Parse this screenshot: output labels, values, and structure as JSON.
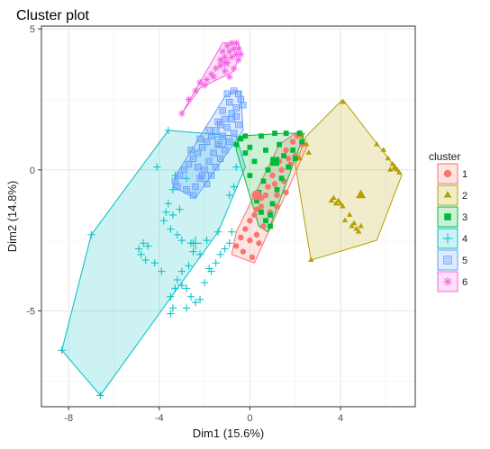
{
  "chart_data": {
    "type": "scatter",
    "title": "Cluster plot",
    "xlabel": "Dim1 (15.6%)",
    "ylabel": "Dim2 (14.8%)",
    "xlim": [
      -9.2,
      7.3
    ],
    "ylim": [
      -8.4,
      5.1
    ],
    "x_ticks": [
      -8,
      -4,
      0,
      4
    ],
    "x_tick_labels": [
      "-8",
      "-4",
      "0",
      "4"
    ],
    "y_ticks": [
      5,
      0,
      -5
    ],
    "y_tick_labels": [
      "5",
      "0",
      "-5"
    ],
    "grid": true,
    "legend": {
      "title": "cluster",
      "position": "right"
    },
    "series": [
      {
        "name": "1",
        "color": "#F8766D",
        "shape": "circle",
        "hull": [
          [
            -0.6,
            -2.2
          ],
          [
            1.3,
            0.9
          ],
          [
            2.2,
            1.4
          ],
          [
            2.5,
            0.8
          ],
          [
            1.9,
            -0.3
          ],
          [
            0.2,
            -3.3
          ],
          [
            -0.8,
            -3.0
          ]
        ],
        "points": [
          [
            -0.4,
            -2.4
          ],
          [
            -0.2,
            -2.1
          ],
          [
            0.0,
            -1.8
          ],
          [
            0.3,
            -1.4
          ],
          [
            0.5,
            -1.0
          ],
          [
            0.8,
            -0.6
          ],
          [
            1.0,
            -0.2
          ],
          [
            1.3,
            0.3
          ],
          [
            1.6,
            0.7
          ],
          [
            1.9,
            1.0
          ],
          [
            2.1,
            1.2
          ],
          [
            -0.6,
            -2.7
          ],
          [
            -0.3,
            -2.9
          ],
          [
            0.1,
            -3.1
          ],
          [
            0.4,
            -2.6
          ],
          [
            0.6,
            -2.0
          ],
          [
            0.9,
            -1.5
          ],
          [
            1.2,
            -0.9
          ],
          [
            1.5,
            -0.4
          ],
          [
            1.8,
            0.2
          ],
          [
            2.0,
            0.5
          ],
          [
            2.3,
            0.9
          ],
          [
            0.2,
            -1.6
          ],
          [
            0.5,
            -1.3
          ],
          [
            0.7,
            -0.9
          ],
          [
            1.1,
            -0.5
          ],
          [
            1.4,
            0.0
          ],
          [
            1.7,
            0.4
          ],
          [
            0.3,
            -2.3
          ],
          [
            0.0,
            -2.5
          ],
          [
            1.2,
            -1.3
          ],
          [
            1.6,
            -0.8
          ]
        ]
      },
      {
        "name": "2",
        "color": "#B79F00",
        "shape": "triangle",
        "hull": [
          [
            2.5,
            1.2
          ],
          [
            4.1,
            2.5
          ],
          [
            6.7,
            -0.2
          ],
          [
            5.6,
            -2.5
          ],
          [
            2.7,
            -3.2
          ],
          [
            2.0,
            0.2
          ]
        ],
        "points": [
          [
            4.1,
            2.4
          ],
          [
            5.6,
            0.9
          ],
          [
            5.9,
            0.7
          ],
          [
            6.1,
            0.4
          ],
          [
            6.3,
            0.2
          ],
          [
            6.4,
            0.05
          ],
          [
            6.5,
            0.0
          ],
          [
            6.6,
            -0.1
          ],
          [
            6.4,
            0.1
          ],
          [
            6.2,
            0.0
          ],
          [
            3.6,
            -1.1
          ],
          [
            3.8,
            -1.2
          ],
          [
            3.9,
            -1.1
          ],
          [
            4.0,
            -1.2
          ],
          [
            4.1,
            -1.3
          ],
          [
            3.7,
            -1.0
          ],
          [
            4.4,
            -1.6
          ],
          [
            4.2,
            -1.8
          ],
          [
            4.5,
            -2.0
          ],
          [
            4.7,
            -2.1
          ],
          [
            4.8,
            -2.2
          ],
          [
            4.9,
            -2.0
          ],
          [
            4.9,
            -0.9
          ],
          [
            2.7,
            -3.2
          ],
          [
            2.3,
            1.2
          ],
          [
            2.5,
            0.9
          ],
          [
            2.6,
            0.6
          ],
          [
            2.2,
            0.4
          ],
          [
            4.6,
            -1.9
          ]
        ]
      },
      {
        "name": "3",
        "color": "#00BA38",
        "shape": "square",
        "hull": [
          [
            -0.5,
            1.2
          ],
          [
            1.5,
            1.3
          ],
          [
            2.4,
            1.3
          ],
          [
            2.1,
            0.6
          ],
          [
            0.8,
            -2.2
          ],
          [
            0.4,
            -2.0
          ],
          [
            -0.6,
            0.7
          ]
        ],
        "points": [
          [
            -0.4,
            1.1
          ],
          [
            -0.2,
            1.2
          ],
          [
            0.5,
            1.2
          ],
          [
            1.1,
            1.3
          ],
          [
            1.6,
            1.3
          ],
          [
            2.2,
            1.3
          ],
          [
            2.3,
            1.0
          ],
          [
            1.9,
            0.7
          ],
          [
            1.5,
            0.5
          ],
          [
            1.1,
            0.3
          ],
          [
            0.8,
            0.0
          ],
          [
            0.6,
            -0.4
          ],
          [
            0.4,
            -0.8
          ],
          [
            0.3,
            -1.1
          ],
          [
            0.5,
            -1.5
          ],
          [
            0.7,
            -1.8
          ],
          [
            0.9,
            -2.0
          ],
          [
            1.2,
            -0.7
          ],
          [
            1.4,
            -0.3
          ],
          [
            1.7,
            0.1
          ],
          [
            2.0,
            0.4
          ],
          [
            1.3,
            0.9
          ],
          [
            -0.2,
            0.6
          ],
          [
            0.2,
            0.3
          ],
          [
            0.0,
            -0.2
          ],
          [
            1.0,
            -1.2
          ],
          [
            0.9,
            -1.6
          ],
          [
            -0.6,
            0.9
          ],
          [
            0.0,
            0.8
          ],
          [
            0.7,
            0.7
          ]
        ]
      },
      {
        "name": "4",
        "color": "#00BFC4",
        "shape": "plus",
        "hull": [
          [
            -3.6,
            1.4
          ],
          [
            -0.6,
            1.2
          ],
          [
            -0.2,
            0.1
          ],
          [
            -1.4,
            -2.2
          ],
          [
            -6.6,
            -8.0
          ],
          [
            -8.3,
            -6.4
          ],
          [
            -7.0,
            -2.3
          ]
        ],
        "points": [
          [
            -3.6,
            1.4
          ],
          [
            -4.1,
            0.1
          ],
          [
            -3.4,
            -0.7
          ],
          [
            -3.6,
            -1.2
          ],
          [
            -3.7,
            -1.5
          ],
          [
            -3.8,
            -1.8
          ],
          [
            -3.5,
            -2.1
          ],
          [
            -3.2,
            -2.3
          ],
          [
            -3.0,
            -2.5
          ],
          [
            -2.6,
            -2.6
          ],
          [
            -2.5,
            -2.9
          ],
          [
            -2.2,
            -3.0
          ],
          [
            -1.9,
            -2.5
          ],
          [
            -1.8,
            -3.5
          ],
          [
            -2.7,
            -3.4
          ],
          [
            -3.0,
            -3.6
          ],
          [
            -3.2,
            -3.9
          ],
          [
            -3.3,
            -4.2
          ],
          [
            -3.0,
            -4.1
          ],
          [
            -2.8,
            -4.2
          ],
          [
            -2.6,
            -4.5
          ],
          [
            -2.4,
            -4.7
          ],
          [
            -3.5,
            -4.5
          ],
          [
            -3.4,
            -4.9
          ],
          [
            -3.5,
            -5.1
          ],
          [
            -2.8,
            -4.9
          ],
          [
            -2.2,
            -4.6
          ],
          [
            -2.0,
            -4.0
          ],
          [
            -1.7,
            -3.6
          ],
          [
            -1.5,
            -3.3
          ],
          [
            -4.7,
            -2.6
          ],
          [
            -4.9,
            -2.8
          ],
          [
            -4.8,
            -3.0
          ],
          [
            -4.5,
            -2.7
          ],
          [
            -4.6,
            -3.2
          ],
          [
            -4.2,
            -3.3
          ],
          [
            -3.9,
            -3.6
          ],
          [
            -7.0,
            -2.3
          ],
          [
            -6.6,
            -8.0
          ],
          [
            -8.3,
            -6.4
          ],
          [
            -2.5,
            -2.6
          ],
          [
            -1.4,
            -2.2
          ],
          [
            -0.9,
            -2.6
          ],
          [
            -1.1,
            -2.8
          ],
          [
            -1.3,
            -3.0
          ],
          [
            -0.8,
            -2.2
          ],
          [
            -0.7,
            -0.6
          ],
          [
            -0.9,
            -0.9
          ],
          [
            -0.6,
            0.1
          ],
          [
            -2.8,
            -0.3
          ],
          [
            -3.3,
            -0.2
          ],
          [
            -3.1,
            -1.4
          ],
          [
            -3.4,
            -1.6
          ]
        ]
      },
      {
        "name": "5",
        "color": "#619CFF",
        "shape": "boxed-square",
        "hull": [
          [
            -0.7,
            2.8
          ],
          [
            -0.4,
            2.8
          ],
          [
            -0.3,
            1.4
          ],
          [
            -2.4,
            -1.0
          ],
          [
            -3.4,
            -0.6
          ],
          [
            -3.2,
            -0.1
          ],
          [
            -1.1,
            2.6
          ]
        ],
        "points": [
          [
            -1.0,
            2.7
          ],
          [
            -0.7,
            2.8
          ],
          [
            -0.5,
            2.7
          ],
          [
            -0.4,
            2.5
          ],
          [
            -0.3,
            2.3
          ],
          [
            -0.6,
            2.2
          ],
          [
            -0.8,
            2.0
          ],
          [
            -1.1,
            1.8
          ],
          [
            -1.3,
            1.6
          ],
          [
            -1.5,
            1.4
          ],
          [
            -1.7,
            1.2
          ],
          [
            -1.9,
            1.0
          ],
          [
            -2.1,
            0.8
          ],
          [
            -2.3,
            0.6
          ],
          [
            -2.5,
            0.4
          ],
          [
            -2.7,
            0.2
          ],
          [
            -2.9,
            0.0
          ],
          [
            -3.1,
            -0.2
          ],
          [
            -3.3,
            -0.4
          ],
          [
            -3.2,
            -0.6
          ],
          [
            -2.8,
            -0.7
          ],
          [
            -2.5,
            -0.9
          ],
          [
            -2.4,
            -0.6
          ],
          [
            -2.2,
            -0.3
          ],
          [
            -2.0,
            0.0
          ],
          [
            -1.8,
            0.3
          ],
          [
            -1.6,
            0.6
          ],
          [
            -1.4,
            0.9
          ],
          [
            -1.2,
            1.2
          ],
          [
            -1.0,
            1.5
          ],
          [
            -0.8,
            1.8
          ],
          [
            -0.6,
            1.9
          ],
          [
            -0.5,
            1.6
          ],
          [
            -0.7,
            1.3
          ],
          [
            -0.9,
            1.0
          ],
          [
            -1.1,
            0.7
          ],
          [
            -1.3,
            0.4
          ],
          [
            -1.5,
            0.1
          ],
          [
            -1.7,
            -0.2
          ],
          [
            -1.9,
            -0.5
          ],
          [
            -2.1,
            -0.2
          ],
          [
            -2.3,
            0.1
          ],
          [
            -2.6,
            0.7
          ],
          [
            -2.2,
            1.1
          ],
          [
            -1.8,
            1.4
          ],
          [
            -1.4,
            1.7
          ],
          [
            -1.2,
            2.1
          ],
          [
            -0.9,
            2.4
          ]
        ]
      },
      {
        "name": "6",
        "color": "#F564E3",
        "shape": "star",
        "hull": [
          [
            -3.0,
            2.0
          ],
          [
            -1.2,
            4.5
          ],
          [
            -0.5,
            4.5
          ],
          [
            -0.4,
            4.2
          ],
          [
            -0.7,
            3.5
          ],
          [
            -2.2,
            2.9
          ]
        ],
        "points": [
          [
            -3.0,
            2.0
          ],
          [
            -2.7,
            2.5
          ],
          [
            -2.2,
            3.1
          ],
          [
            -1.9,
            3.2
          ],
          [
            -1.7,
            3.4
          ],
          [
            -1.5,
            3.6
          ],
          [
            -1.3,
            3.9
          ],
          [
            -1.2,
            4.2
          ],
          [
            -1.0,
            4.4
          ],
          [
            -0.8,
            4.5
          ],
          [
            -0.6,
            4.5
          ],
          [
            -0.5,
            4.3
          ],
          [
            -0.6,
            4.1
          ],
          [
            -0.8,
            4.0
          ],
          [
            -1.0,
            3.8
          ],
          [
            -1.1,
            3.5
          ],
          [
            -0.9,
            3.3
          ],
          [
            -0.7,
            3.6
          ],
          [
            -0.5,
            3.9
          ],
          [
            -0.4,
            4.1
          ],
          [
            -0.9,
            4.2
          ],
          [
            -1.1,
            4.0
          ],
          [
            -1.3,
            3.7
          ],
          [
            -1.6,
            3.3
          ],
          [
            -2.0,
            3.0
          ],
          [
            -2.4,
            2.8
          ],
          [
            -0.7,
            4.3
          ]
        ]
      }
    ],
    "centroids": [
      [
        0.3,
        -0.9
      ],
      [
        4.9,
        -0.9
      ],
      [
        1.1,
        0.3
      ],
      [
        -2.4,
        -2.6
      ],
      [
        -1.3,
        1.0
      ],
      [
        -1.1,
        3.8
      ]
    ]
  }
}
